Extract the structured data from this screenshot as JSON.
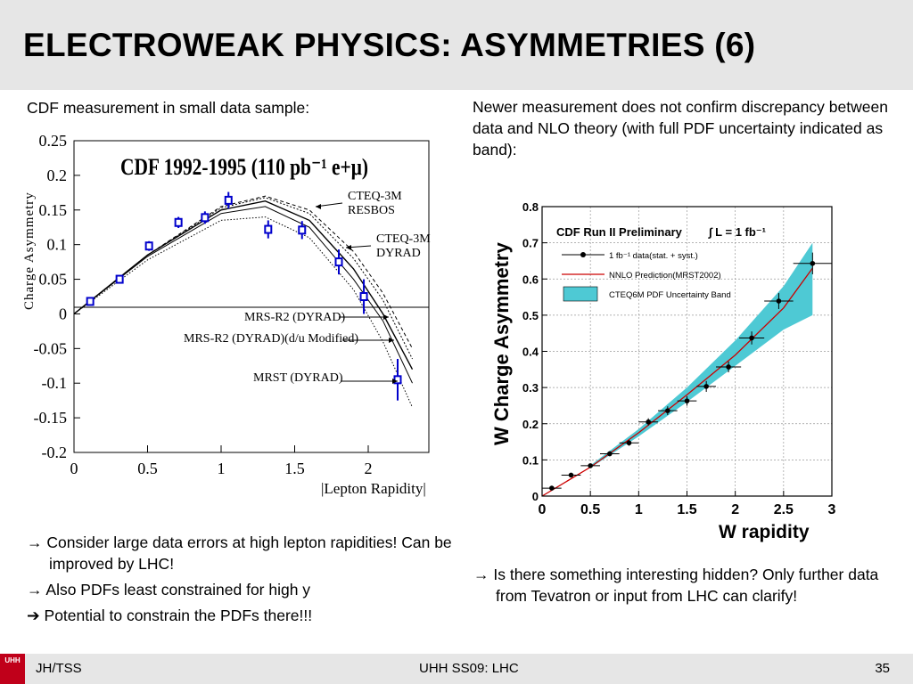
{
  "slide": {
    "title": "ELECTROWEAK PHYSICS: ASYMMETRIES (6)",
    "left_intro": "CDF measurement in small data sample:",
    "right_intro": "Newer measurement does not confirm discrepancy between data and NLO theory (with full PDF uncertainty indicated as band):",
    "left_bullets": [
      "→ Consider large data errors at high lepton rapidities! Can be improved by LHC!",
      "→ Also PDFs least constrained for high y",
      "➔ Potential to constrain the PDFs there!!!"
    ],
    "right_bullets": [
      "→ Is there something interesting hidden? Only further data from Tevatron or input from LHC can clarify!"
    ]
  },
  "footer": {
    "logo": "UHH",
    "author": "JH/TSS",
    "course": "UHH SS09: LHC",
    "page": "35"
  },
  "chart_data": [
    {
      "type": "line",
      "title": "CDF 1992-1995 (110 pb⁻¹ e+μ)",
      "xlabel": "|Lepton Rapidity|",
      "ylabel": "Charge Asymmetry",
      "xlim": [
        0,
        2.5
      ],
      "ylim": [
        -0.2,
        0.25
      ],
      "xticks": [
        "0",
        "0.5",
        "1",
        "1.5",
        "2"
      ],
      "yticks": [
        "0.25",
        "0.2",
        "0.15",
        "0.1",
        "0.05",
        "0",
        "-0.05",
        "-0.1",
        "-0.15",
        "-0.2"
      ],
      "data": {
        "x": [
          0.11,
          0.31,
          0.51,
          0.71,
          0.89,
          1.05,
          1.32,
          1.55,
          1.8,
          1.97,
          2.2
        ],
        "y": [
          0.018,
          0.05,
          0.098,
          0.132,
          0.139,
          0.164,
          0.122,
          0.121,
          0.075,
          0.025,
          -0.095
        ],
        "err": [
          0.005,
          0.005,
          0.007,
          0.008,
          0.009,
          0.012,
          0.013,
          0.013,
          0.018,
          0.025,
          0.03
        ]
      },
      "curves": [
        {
          "label": "CTEQ-3M RESBOS",
          "x": [
            0,
            0.5,
            1.0,
            1.3,
            1.6,
            1.9,
            2.1,
            2.3
          ],
          "y": [
            0,
            0.085,
            0.155,
            0.17,
            0.15,
            0.09,
            0.03,
            -0.05
          ]
        },
        {
          "label": "CTEQ-3M DYRAD",
          "x": [
            0,
            0.5,
            1.0,
            1.3,
            1.6,
            1.9,
            2.1,
            2.3
          ],
          "y": [
            0,
            0.085,
            0.153,
            0.168,
            0.145,
            0.08,
            0.02,
            -0.065
          ]
        },
        {
          "label": "MRS-R2 (DYRAD)",
          "x": [
            0,
            0.5,
            1.0,
            1.3,
            1.6,
            1.9,
            2.1,
            2.3
          ],
          "y": [
            0,
            0.085,
            0.15,
            0.163,
            0.135,
            0.065,
            0.0,
            -0.08
          ]
        },
        {
          "label": "MRS-R2 (DYRAD)(d/u Modified)",
          "x": [
            0,
            0.5,
            1.0,
            1.3,
            1.6,
            1.9,
            2.1,
            2.3
          ],
          "y": [
            0,
            0.083,
            0.145,
            0.155,
            0.125,
            0.05,
            -0.01,
            -0.1
          ]
        },
        {
          "label": "MRST (DYRAD)",
          "x": [
            0,
            0.5,
            1.0,
            1.3,
            1.6,
            1.9,
            2.1,
            2.3
          ],
          "y": [
            0,
            0.078,
            0.135,
            0.14,
            0.11,
            0.035,
            -0.04,
            -0.135
          ]
        }
      ]
    },
    {
      "type": "line",
      "title": "CDF Run II Preliminary",
      "luminosity": "∫ L = 1 fb⁻¹",
      "xlabel": "W rapidity",
      "ylabel": "W Charge Asymmetry",
      "xlim": [
        0,
        3
      ],
      "ylim": [
        0,
        0.8
      ],
      "xticks": [
        "0",
        "0.5",
        "1",
        "1.5",
        "2",
        "2.5",
        "3"
      ],
      "yticks": [
        "0",
        "0.1",
        "0.2",
        "0.3",
        "0.4",
        "0.5",
        "0.6",
        "0.7",
        "0.8"
      ],
      "legend": [
        "1 fb⁻¹ data(stat. + syst.)",
        "NNLO Prediction(MRST2002)",
        "CTEQ6M PDF Uncertainty Band"
      ],
      "legend_position": "top-left",
      "grid": true,
      "colors": {
        "data": "#000000",
        "prediction": "#cc0000",
        "band": "#4ec9d4"
      },
      "data": {
        "x": [
          0.1,
          0.3,
          0.5,
          0.7,
          0.9,
          1.1,
          1.3,
          1.5,
          1.7,
          1.93,
          2.17,
          2.45,
          2.8
        ],
        "y": [
          0.022,
          0.058,
          0.084,
          0.117,
          0.147,
          0.205,
          0.236,
          0.263,
          0.303,
          0.357,
          0.437,
          0.539,
          0.643
        ],
        "xerr": [
          0.1,
          0.1,
          0.1,
          0.1,
          0.1,
          0.1,
          0.1,
          0.1,
          0.1,
          0.13,
          0.13,
          0.15,
          0.2
        ],
        "yerr": [
          0.004,
          0.005,
          0.006,
          0.007,
          0.008,
          0.01,
          0.012,
          0.013,
          0.015,
          0.015,
          0.018,
          0.022,
          0.03
        ]
      },
      "prediction": {
        "x": [
          0.0,
          0.5,
          1.0,
          1.5,
          2.0,
          2.5,
          2.8
        ],
        "y": [
          0.0,
          0.08,
          0.175,
          0.28,
          0.39,
          0.52,
          0.63
        ]
      },
      "band": {
        "x": [
          0.5,
          1.0,
          1.5,
          2.0,
          2.5,
          2.8
        ],
        "lower": [
          0.078,
          0.165,
          0.26,
          0.36,
          0.46,
          0.5
        ],
        "upper": [
          0.085,
          0.185,
          0.3,
          0.43,
          0.58,
          0.7
        ]
      }
    }
  ]
}
